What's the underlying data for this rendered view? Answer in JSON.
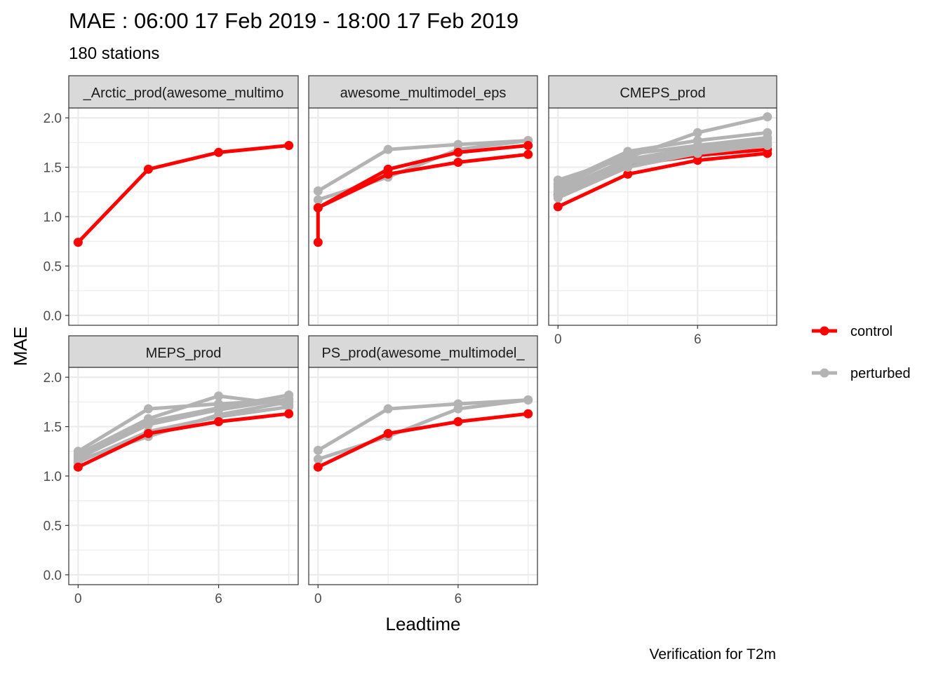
{
  "title": "MAE : 06:00 17 Feb 2019 - 18:00 17 Feb 2019",
  "subtitle": "180 stations",
  "caption": "Verification for T2m",
  "colors": {
    "control": "#ff0000",
    "perturbed": "#b3b3b3",
    "strip_fill": "#d9d9d9",
    "grid": "#ebebeb"
  },
  "chart_data": {
    "type": "line",
    "xlabel": "Leadtime",
    "ylabel": "MAE",
    "xlim": [
      -0.4,
      9.4
    ],
    "ylim": [
      -0.1,
      2.1
    ],
    "x_ticks": [
      0,
      6
    ],
    "x_tick_labels": [
      "0",
      "6"
    ],
    "y_ticks": [
      0,
      0.5,
      1,
      1.5,
      2
    ],
    "y_tick_labels": [
      "0.0",
      "0.5",
      "1.0",
      "1.5",
      "2.0"
    ],
    "grid": true,
    "legend": {
      "placement": "right",
      "entries": [
        {
          "label": "control",
          "color": "#ff0000"
        },
        {
          "label": "perturbed",
          "color": "#b3b3b3"
        }
      ]
    },
    "panels": [
      {
        "label": "_Arctic_prod(awesome_multimo",
        "lines": [
          {
            "group": "control",
            "x": [
              0,
              3,
              6,
              9
            ],
            "y": [
              0.74,
              1.48,
              1.65,
              1.72
            ]
          }
        ]
      },
      {
        "label": "awesome_multimodel_eps",
        "lines": [
          {
            "group": "perturbed",
            "x": [
              0,
              3,
              6,
              9
            ],
            "y": [
              1.26,
              1.68,
              1.73,
              1.77
            ]
          },
          {
            "group": "perturbed",
            "x": [
              0,
              3,
              6,
              9
            ],
            "y": [
              1.17,
              1.4,
              1.68,
              1.77
            ]
          },
          {
            "group": "control",
            "x": [
              0,
              0,
              3,
              6,
              9
            ],
            "y": [
              0.74,
              1.09,
              1.48,
              1.65,
              1.72
            ]
          },
          {
            "group": "control",
            "x": [
              0,
              3,
              6,
              9
            ],
            "y": [
              1.09,
              1.43,
              1.55,
              1.63
            ]
          }
        ]
      },
      {
        "label": "CMEPS_prod",
        "lines": [
          {
            "group": "control",
            "x": [
              0,
              3,
              6,
              9
            ],
            "y": [
              1.1,
              1.43,
              1.57,
              1.64
            ]
          },
          {
            "group": "control",
            "x": [
              0,
              3,
              6,
              9
            ],
            "y": [
              1.22,
              1.52,
              1.62,
              1.68
            ]
          },
          {
            "group": "perturbed",
            "x": [
              0,
              3,
              6,
              9
            ],
            "y": [
              1.37,
              1.6,
              1.85,
              2.01
            ]
          },
          {
            "group": "perturbed",
            "x": [
              0,
              3,
              6,
              9
            ],
            "y": [
              1.33,
              1.66,
              1.77,
              1.85
            ]
          },
          {
            "group": "perturbed",
            "x": [
              0,
              3,
              6,
              9
            ],
            "y": [
              1.3,
              1.63,
              1.72,
              1.8
            ]
          },
          {
            "group": "perturbed",
            "x": [
              0,
              3,
              6,
              9
            ],
            "y": [
              1.27,
              1.58,
              1.7,
              1.78
            ]
          },
          {
            "group": "perturbed",
            "x": [
              0,
              3,
              6,
              9
            ],
            "y": [
              1.25,
              1.56,
              1.67,
              1.75
            ]
          },
          {
            "group": "perturbed",
            "x": [
              0,
              3,
              6,
              9
            ],
            "y": [
              1.21,
              1.54,
              1.65,
              1.73
            ]
          },
          {
            "group": "perturbed",
            "x": [
              0,
              3,
              6,
              9
            ],
            "y": [
              1.19,
              1.5,
              1.64,
              1.72
            ]
          }
        ]
      },
      {
        "label": "MEPS_prod",
        "lines": [
          {
            "group": "perturbed",
            "x": [
              0,
              3,
              6,
              9
            ],
            "y": [
              1.25,
              1.68,
              1.73,
              1.77
            ]
          },
          {
            "group": "perturbed",
            "x": [
              0,
              3,
              6,
              9
            ],
            "y": [
              1.22,
              1.58,
              1.81,
              1.72
            ]
          },
          {
            "group": "perturbed",
            "x": [
              0,
              3,
              6,
              9
            ],
            "y": [
              1.2,
              1.55,
              1.69,
              1.82
            ]
          },
          {
            "group": "perturbed",
            "x": [
              0,
              3,
              6,
              9
            ],
            "y": [
              1.18,
              1.52,
              1.67,
              1.78
            ]
          },
          {
            "group": "perturbed",
            "x": [
              0,
              3,
              6,
              9
            ],
            "y": [
              1.16,
              1.4,
              1.62,
              1.75
            ]
          },
          {
            "group": "perturbed",
            "x": [
              0,
              3,
              6,
              9
            ],
            "y": [
              1.14,
              1.45,
              1.6,
              1.7
            ]
          },
          {
            "group": "control",
            "x": [
              0,
              3,
              6,
              9
            ],
            "y": [
              1.09,
              1.43,
              1.55,
              1.63
            ]
          }
        ]
      },
      {
        "label": "PS_prod(awesome_multimodel_",
        "lines": [
          {
            "group": "perturbed",
            "x": [
              0,
              3,
              6,
              9
            ],
            "y": [
              1.26,
              1.68,
              1.73,
              1.77
            ]
          },
          {
            "group": "perturbed",
            "x": [
              0,
              3,
              6,
              9
            ],
            "y": [
              1.17,
              1.4,
              1.68,
              1.77
            ]
          },
          {
            "group": "control",
            "x": [
              0,
              3,
              6,
              9
            ],
            "y": [
              1.09,
              1.43,
              1.55,
              1.63
            ]
          }
        ]
      }
    ]
  }
}
